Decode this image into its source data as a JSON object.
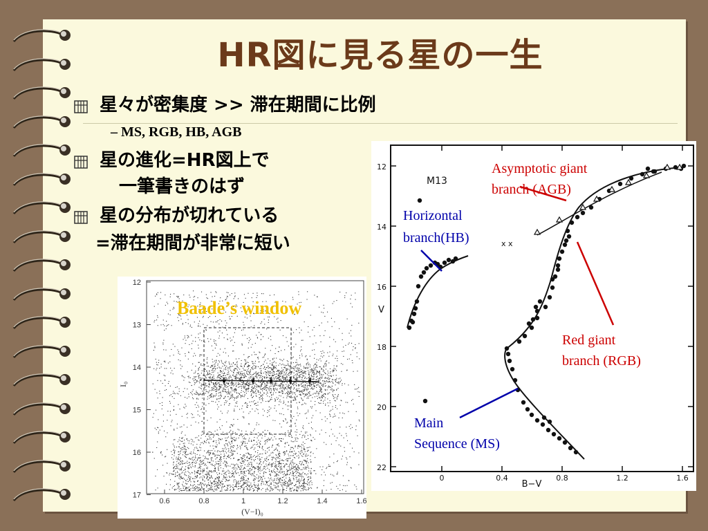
{
  "title": "HR図に見る星の一生",
  "bullets": [
    {
      "text": "星々が密集度 >> 滞在期間に比例"
    },
    {
      "sub": "MS, RGB, HB, AGB"
    },
    {
      "line1": "星の進化=HR図上で",
      "line2": "一筆書きのはず"
    },
    {
      "line1": "星の分布が切れている",
      "line2": "=滞在期間が非常に短い"
    }
  ],
  "left_chart": {
    "label": "Baade’s window",
    "x_ticks": [
      "0.6",
      "0.8",
      "1",
      "1.2",
      "1.4",
      "1.6"
    ],
    "y_ticks": [
      "12",
      "13",
      "14",
      "15",
      "16",
      "17"
    ],
    "x_axis_label": "(V−I)₀",
    "y_axis_label": "I₀",
    "label_color": "#f0c000"
  },
  "right_chart": {
    "panel_label": "M13",
    "x_ticks": [
      "0",
      "0.4",
      "0.8",
      "1.2",
      "1.6"
    ],
    "y_ticks": [
      "12",
      "14",
      "16",
      "18",
      "20",
      "22"
    ],
    "x_axis_label": "B−V",
    "y_axis_label": "V",
    "annotations": {
      "agb": {
        "line1": "Asymptotic giant",
        "line2": "branch (AGB)",
        "color": "#cc0000"
      },
      "hb": {
        "line1": "Horizontal",
        "line2": "branch(HB)",
        "color": "#0000aa"
      },
      "rgb": {
        "line1": "Red giant",
        "line2": "branch (RGB)",
        "color": "#cc0000"
      },
      "ms": {
        "line1": "Main",
        "line2": "Sequence (MS)",
        "color": "#0000aa"
      }
    }
  },
  "colors": {
    "title": "#6b3a1a",
    "background": "#8a7058",
    "paper": "#fbf9dd"
  }
}
